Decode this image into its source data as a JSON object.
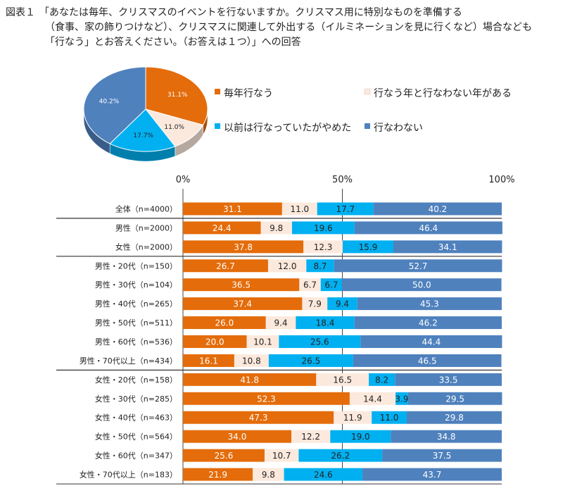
{
  "title": {
    "figure_num": "図表１",
    "lines": [
      "「あなたは毎年、クリスマスのイベントを行ないますか。クリスマス用に特別なものを準備する",
      "（食事、家の飾りつけなど）、クリスマスに関連して外出する（イルミネーションを見に行くなど）場合なども",
      "「行なう」とお答えください。（お答えは１つ）」への回答"
    ]
  },
  "chart_data": [
    {
      "type": "pie",
      "title": "",
      "slices": [
        {
          "label": "毎年行なう",
          "value": 31.1,
          "value_label": "31.1%",
          "color": "#E46C0A"
        },
        {
          "label": "行なう年と行なわない年がある",
          "value": 11.0,
          "value_label": "11.0%",
          "color": "#FCE9DD"
        },
        {
          "label": "以前は行なっていたがやめた",
          "value": 17.7,
          "value_label": "17.7%",
          "color": "#00B0F0"
        },
        {
          "label": "行なわない",
          "value": 40.2,
          "value_label": "40.2%",
          "color": "#4F81BD"
        }
      ]
    },
    {
      "type": "bar",
      "orientation": "horizontal",
      "stacked": "percent",
      "xlim": [
        0,
        100
      ],
      "xticks": [
        "0%",
        "50%",
        "100%"
      ],
      "categories": [
        "全体（n=4000）",
        "男性（n=2000）",
        "女性（n=2000）",
        "男性・20代（n=150）",
        "男性・30代（n=104）",
        "男性・40代（n=265）",
        "男性・50代（n=511）",
        "男性・60代（n=536）",
        "男性・70代以上（n=434）",
        "女性・20代（n=158）",
        "女性・30代（n=285）",
        "女性・40代（n=463）",
        "女性・50代（n=564）",
        "女性・60代（n=347）",
        "女性・70代以上（n=183）"
      ],
      "group_breaks_after": [
        0,
        2,
        8
      ],
      "series": [
        {
          "name": "毎年行なう",
          "color": "#E46C0A",
          "text_color": "#ffffff",
          "values": [
            31.1,
            24.4,
            37.8,
            26.7,
            36.5,
            37.4,
            26.0,
            20.0,
            16.1,
            41.8,
            52.3,
            47.3,
            34.0,
            25.6,
            21.9
          ]
        },
        {
          "name": "行なう年と行なわない年がある",
          "color": "#FCE9DD",
          "text_color": "#222222",
          "values": [
            11.0,
            9.8,
            12.3,
            12.0,
            6.7,
            7.9,
            9.4,
            10.1,
            10.8,
            16.5,
            14.4,
            11.9,
            12.2,
            10.7,
            9.8
          ]
        },
        {
          "name": "以前は行なっていたがやめた",
          "color": "#00B0F0",
          "text_color": "#222222",
          "values": [
            17.7,
            19.6,
            15.9,
            8.7,
            6.7,
            9.4,
            18.4,
            25.6,
            26.5,
            8.2,
            3.9,
            11.0,
            19.0,
            26.2,
            24.6
          ]
        },
        {
          "name": "行なわない",
          "color": "#4F81BD",
          "text_color": "#ffffff",
          "values": [
            40.2,
            46.4,
            34.1,
            52.7,
            50.0,
            45.3,
            46.2,
            44.4,
            46.5,
            33.5,
            29.5,
            29.8,
            34.8,
            37.5,
            43.7
          ]
        }
      ]
    }
  ]
}
